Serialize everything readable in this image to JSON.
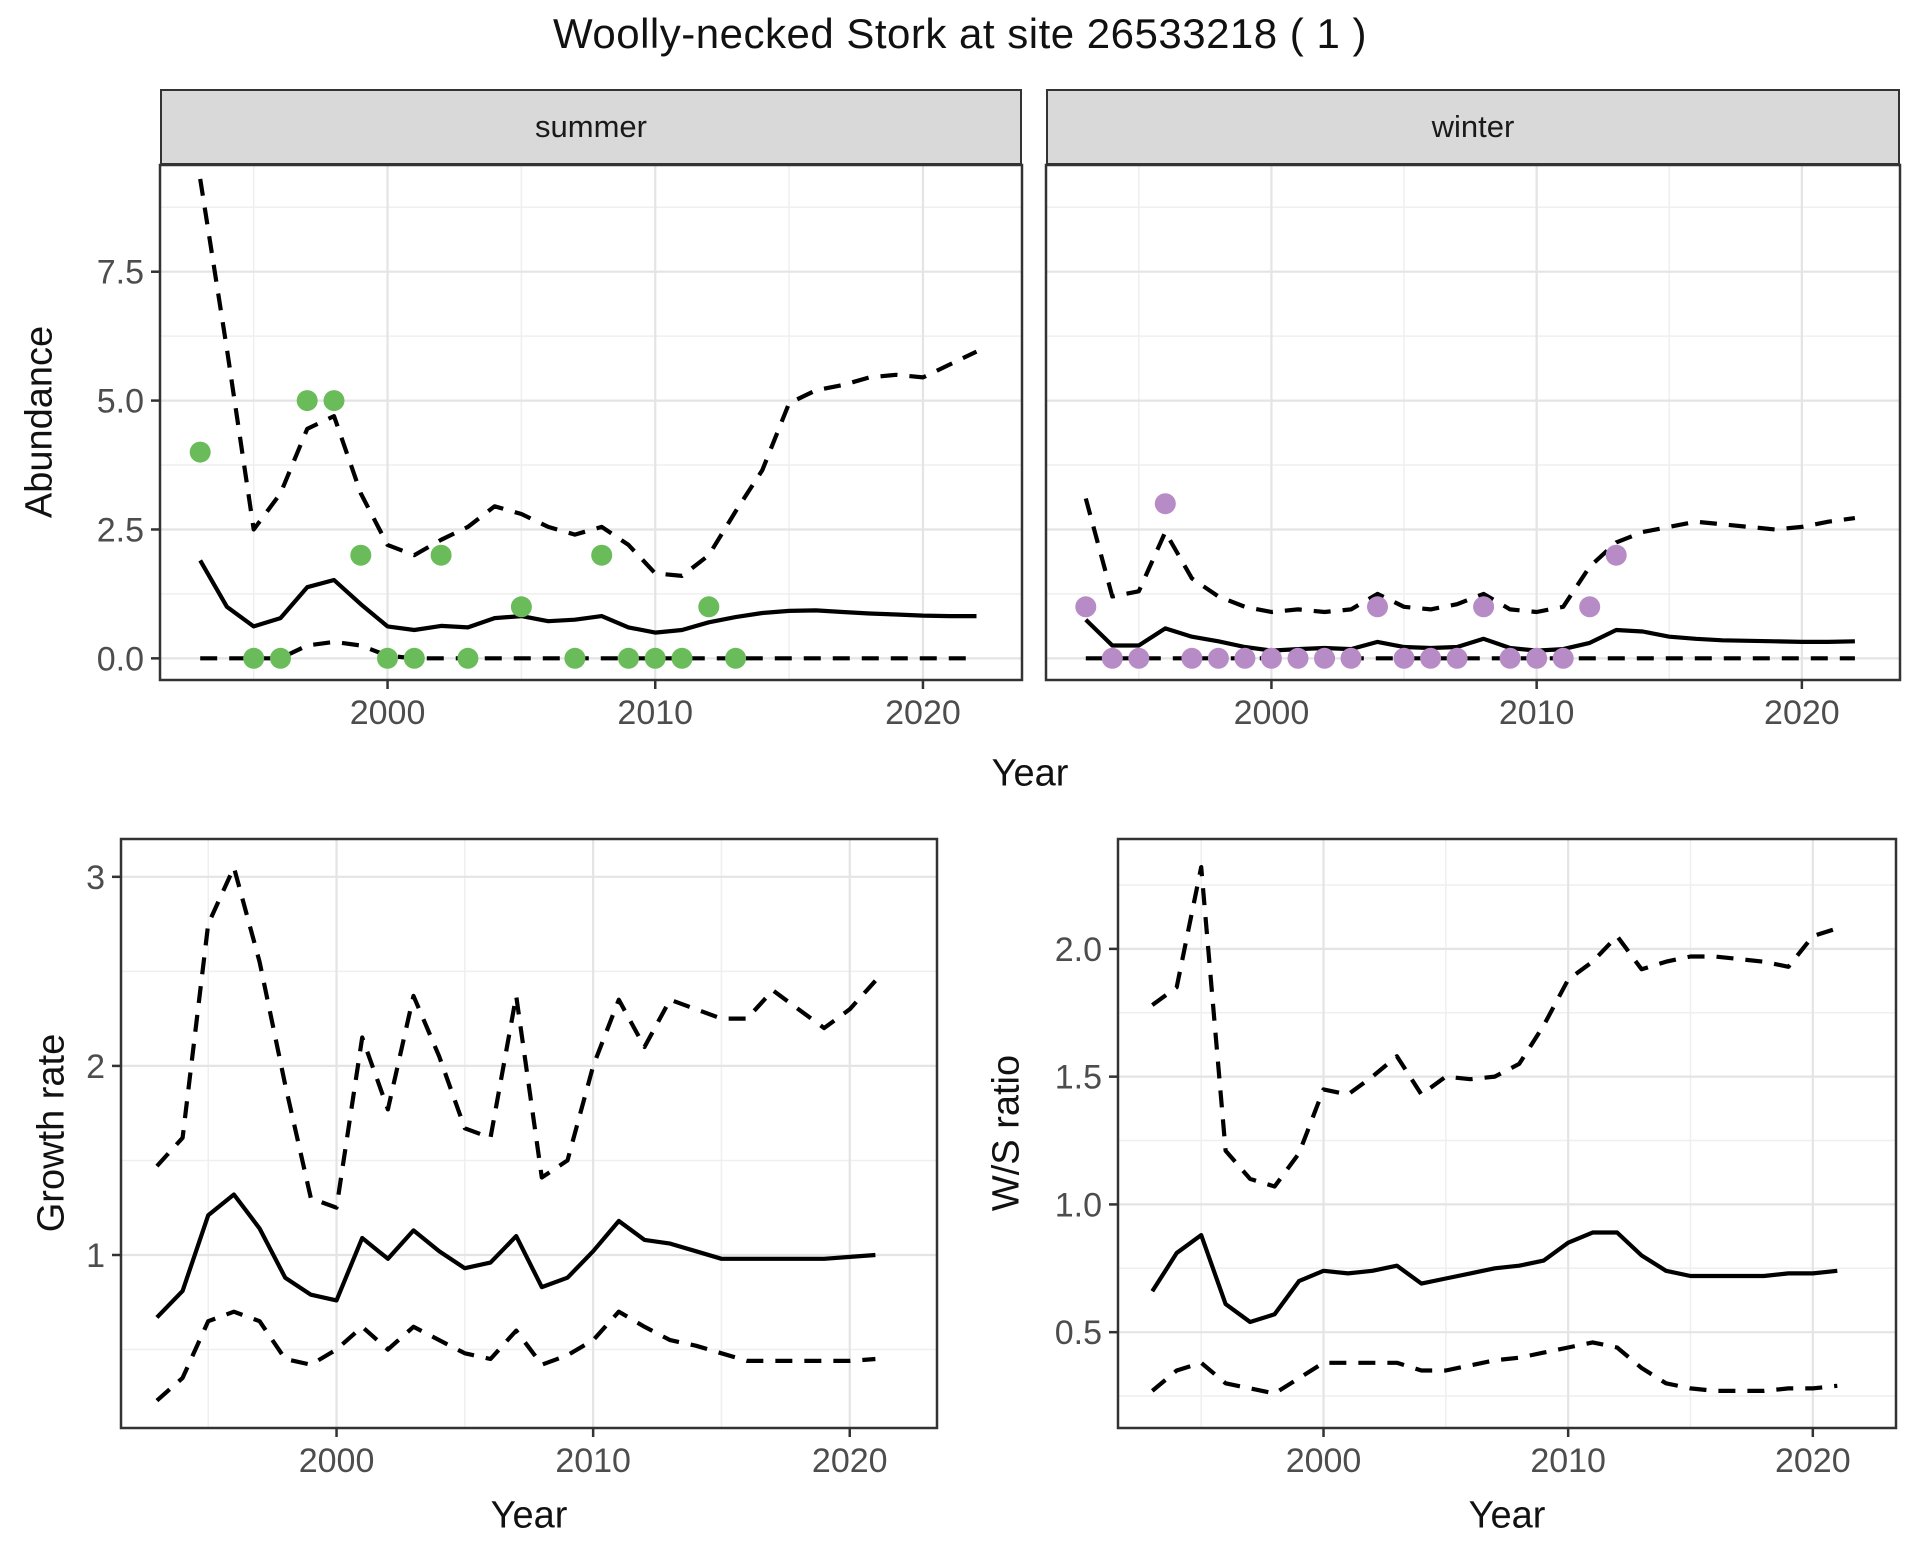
{
  "title": "Woolly-necked Stork at site 26533218 ( 1 )",
  "colors": {
    "summer_point": "#6abc5a",
    "winter_point": "#b78cc6",
    "line": "#000000",
    "strip_background": "#d9d9d9",
    "axis_text": "#4d4d4d",
    "grid_major": "#e4e4e4",
    "grid_minor": "#efefef",
    "panel_border": "#333333"
  },
  "chart_data": [
    {
      "type": "line",
      "facet_label": "summer",
      "xlabel": "Year",
      "ylabel": "Abundance",
      "xlim": [
        1991.5,
        2023.7
      ],
      "ylim": [
        -0.42,
        9.57
      ],
      "x_ticks": [
        2000,
        2010,
        2020
      ],
      "x_minor": [
        1995,
        2005,
        2015
      ],
      "y_ticks": [
        {
          "v": 0,
          "label": "0.0"
        },
        {
          "v": 2.5,
          "label": "2.5"
        },
        {
          "v": 5,
          "label": "5.0"
        },
        {
          "v": 7.5,
          "label": "7.5"
        }
      ],
      "y_minor": [
        1.25,
        3.75,
        6.25,
        8.75
      ],
      "years": [
        1993,
        1994,
        1995,
        1996,
        1997,
        1998,
        1999,
        2000,
        2001,
        2002,
        2003,
        2004,
        2005,
        2006,
        2007,
        2008,
        2009,
        2010,
        2011,
        2012,
        2013,
        2014,
        2015,
        2016,
        2017,
        2018,
        2019,
        2020,
        2021,
        2022
      ],
      "series": [
        {
          "name": "median_fit",
          "style": "solid",
          "values": [
            1.9,
            1.0,
            0.62,
            0.78,
            1.38,
            1.52,
            1.05,
            0.62,
            0.55,
            0.63,
            0.6,
            0.78,
            0.82,
            0.72,
            0.75,
            0.82,
            0.6,
            0.5,
            0.55,
            0.7,
            0.8,
            0.88,
            0.92,
            0.93,
            0.9,
            0.87,
            0.85,
            0.83,
            0.82,
            0.82
          ]
        },
        {
          "name": "upper_ci",
          "style": "dashed",
          "values": [
            9.3,
            6.0,
            2.5,
            3.2,
            4.45,
            4.7,
            3.2,
            2.2,
            2.0,
            2.3,
            2.55,
            2.95,
            2.8,
            2.55,
            2.4,
            2.55,
            2.2,
            1.65,
            1.6,
            2.0,
            2.85,
            3.65,
            4.95,
            5.2,
            5.3,
            5.45,
            5.5,
            5.45,
            5.7,
            5.95
          ]
        },
        {
          "name": "lower_ci",
          "style": "dashed",
          "values": [
            0,
            0,
            0,
            0,
            0.25,
            0.32,
            0.25,
            0.05,
            0,
            0,
            0,
            0,
            0,
            0,
            0,
            0,
            0,
            0,
            0,
            0,
            0,
            0,
            0,
            0,
            0,
            0,
            0,
            0,
            0,
            0
          ]
        }
      ],
      "observed": {
        "color": "#6abc5a",
        "years": [
          1993,
          1995,
          1996,
          1997,
          1998,
          1999,
          2000,
          2001,
          2002,
          2003,
          2005,
          2007,
          2008,
          2009,
          2010,
          2011,
          2012,
          2013
        ],
        "values": [
          4,
          0,
          0,
          5,
          5,
          2,
          0,
          0,
          2,
          0,
          1,
          0,
          2,
          0,
          0,
          0,
          1,
          0
        ]
      }
    },
    {
      "type": "line",
      "facet_label": "winter",
      "xlabel": "Year",
      "ylabel": "Abundance",
      "xlim": [
        1991.5,
        2023.7
      ],
      "ylim": [
        -0.42,
        9.57
      ],
      "x_ticks": [
        2000,
        2010,
        2020
      ],
      "x_minor": [
        1995,
        2005,
        2015
      ],
      "y_ticks": [
        {
          "v": 0,
          "label": "0.0"
        },
        {
          "v": 2.5,
          "label": "2.5"
        },
        {
          "v": 5,
          "label": "5.0"
        },
        {
          "v": 7.5,
          "label": "7.5"
        }
      ],
      "y_minor": [
        1.25,
        3.75,
        6.25,
        8.75
      ],
      "years": [
        1993,
        1994,
        1995,
        1996,
        1997,
        1998,
        1999,
        2000,
        2001,
        2002,
        2003,
        2004,
        2005,
        2006,
        2007,
        2008,
        2009,
        2010,
        2011,
        2012,
        2013,
        2014,
        2015,
        2016,
        2017,
        2018,
        2019,
        2020,
        2021,
        2022
      ],
      "series": [
        {
          "name": "median_fit",
          "style": "solid",
          "values": [
            0.75,
            0.25,
            0.25,
            0.58,
            0.42,
            0.33,
            0.22,
            0.15,
            0.18,
            0.2,
            0.18,
            0.32,
            0.22,
            0.2,
            0.22,
            0.38,
            0.2,
            0.15,
            0.18,
            0.3,
            0.55,
            0.52,
            0.42,
            0.38,
            0.35,
            0.34,
            0.33,
            0.32,
            0.32,
            0.33
          ]
        },
        {
          "name": "upper_ci",
          "style": "dashed",
          "values": [
            3.1,
            1.2,
            1.3,
            2.45,
            1.55,
            1.2,
            1.0,
            0.9,
            0.95,
            0.9,
            0.95,
            1.25,
            1.0,
            0.95,
            1.05,
            1.25,
            0.95,
            0.9,
            1.0,
            1.78,
            2.25,
            2.45,
            2.55,
            2.65,
            2.6,
            2.55,
            2.5,
            2.55,
            2.65,
            2.72
          ]
        },
        {
          "name": "lower_ci",
          "style": "dashed",
          "values": [
            0,
            0,
            0,
            0,
            0,
            0,
            0,
            0,
            0,
            0,
            0,
            0,
            0,
            0,
            0,
            0,
            0,
            0,
            0,
            0,
            0,
            0,
            0,
            0,
            0,
            0,
            0,
            0,
            0,
            0
          ]
        }
      ],
      "observed": {
        "color": "#b78cc6",
        "years": [
          1993,
          1994,
          1995,
          1996,
          1997,
          1998,
          1999,
          2000,
          2001,
          2002,
          2003,
          2004,
          2005,
          2006,
          2007,
          2008,
          2009,
          2010,
          2011,
          2012,
          2013
        ],
        "values": [
          1,
          0,
          0,
          3,
          0,
          0,
          0,
          0,
          0,
          0,
          0,
          1,
          0,
          0,
          0,
          1,
          0,
          0,
          0,
          1,
          2
        ]
      }
    },
    {
      "type": "line",
      "facet_label": "",
      "xlabel": "Year",
      "ylabel": "Growth rate",
      "xlim": [
        1991.6,
        2023.4
      ],
      "ylim": [
        0.085,
        3.2
      ],
      "x_ticks": [
        2000,
        2010,
        2020
      ],
      "x_minor": [
        1995,
        2005,
        2015
      ],
      "y_ticks": [
        {
          "v": 1,
          "label": "1"
        },
        {
          "v": 2,
          "label": "2"
        },
        {
          "v": 3,
          "label": "3"
        }
      ],
      "y_minor": [
        0.5,
        1.5,
        2.5
      ],
      "years": [
        1993,
        1994,
        1995,
        1996,
        1997,
        1998,
        1999,
        2000,
        2001,
        2002,
        2003,
        2004,
        2005,
        2006,
        2007,
        2008,
        2009,
        2010,
        2011,
        2012,
        2013,
        2014,
        2015,
        2016,
        2017,
        2018,
        2019,
        2020,
        2021
      ],
      "series": [
        {
          "name": "median_fit",
          "style": "solid",
          "values": [
            0.67,
            0.81,
            1.21,
            1.32,
            1.14,
            0.88,
            0.79,
            0.76,
            1.09,
            0.98,
            1.13,
            1.02,
            0.93,
            0.96,
            1.1,
            0.83,
            0.88,
            1.02,
            1.18,
            1.08,
            1.06,
            1.02,
            0.98,
            0.98,
            0.98,
            0.98,
            0.98,
            0.99,
            1.0
          ]
        },
        {
          "name": "upper_ci",
          "style": "dashed",
          "values": [
            1.47,
            1.62,
            2.75,
            3.05,
            2.55,
            1.9,
            1.3,
            1.25,
            2.15,
            1.77,
            2.37,
            2.05,
            1.67,
            1.62,
            2.37,
            1.41,
            1.5,
            2.0,
            2.35,
            2.1,
            2.35,
            2.3,
            2.25,
            2.25,
            2.4,
            2.3,
            2.2,
            2.3,
            2.45
          ]
        },
        {
          "name": "lower_ci",
          "style": "dashed",
          "values": [
            0.23,
            0.35,
            0.65,
            0.7,
            0.65,
            0.45,
            0.42,
            0.5,
            0.62,
            0.5,
            0.62,
            0.55,
            0.48,
            0.45,
            0.6,
            0.42,
            0.47,
            0.55,
            0.7,
            0.62,
            0.55,
            0.52,
            0.48,
            0.44,
            0.44,
            0.44,
            0.44,
            0.44,
            0.45
          ]
        }
      ],
      "observed": null
    },
    {
      "type": "line",
      "facet_label": "",
      "xlabel": "Year",
      "ylabel": "W/S ratio",
      "xlim": [
        1991.6,
        2023.4
      ],
      "ylim": [
        0.125,
        2.43
      ],
      "x_ticks": [
        2000,
        2010,
        2020
      ],
      "x_minor": [
        1995,
        2005,
        2015
      ],
      "y_ticks": [
        {
          "v": 0.5,
          "label": "0.5"
        },
        {
          "v": 1.0,
          "label": "1.0"
        },
        {
          "v": 1.5,
          "label": "1.5"
        },
        {
          "v": 2.0,
          "label": "2.0"
        }
      ],
      "y_minor": [
        0.25,
        0.75,
        1.25,
        1.75,
        2.25
      ],
      "years": [
        1993,
        1994,
        1995,
        1996,
        1997,
        1998,
        1999,
        2000,
        2001,
        2002,
        2003,
        2004,
        2005,
        2006,
        2007,
        2008,
        2009,
        2010,
        2011,
        2012,
        2013,
        2014,
        2015,
        2016,
        2017,
        2018,
        2019,
        2020,
        2021
      ],
      "series": [
        {
          "name": "median_fit",
          "style": "solid",
          "values": [
            0.66,
            0.81,
            0.88,
            0.61,
            0.54,
            0.57,
            0.7,
            0.74,
            0.73,
            0.74,
            0.76,
            0.69,
            0.71,
            0.73,
            0.75,
            0.76,
            0.78,
            0.85,
            0.89,
            0.89,
            0.8,
            0.74,
            0.72,
            0.72,
            0.72,
            0.72,
            0.73,
            0.73,
            0.74
          ]
        },
        {
          "name": "upper_ci",
          "style": "dashed",
          "values": [
            1.78,
            1.85,
            2.32,
            1.21,
            1.1,
            1.07,
            1.2,
            1.45,
            1.43,
            1.5,
            1.58,
            1.43,
            1.5,
            1.49,
            1.5,
            1.55,
            1.7,
            1.88,
            1.95,
            2.05,
            1.92,
            1.95,
            1.97,
            1.97,
            1.96,
            1.95,
            1.93,
            2.05,
            2.08
          ]
        },
        {
          "name": "lower_ci",
          "style": "dashed",
          "values": [
            0.27,
            0.35,
            0.38,
            0.3,
            0.28,
            0.26,
            0.32,
            0.38,
            0.38,
            0.38,
            0.38,
            0.35,
            0.35,
            0.37,
            0.39,
            0.4,
            0.42,
            0.44,
            0.46,
            0.44,
            0.36,
            0.3,
            0.28,
            0.27,
            0.27,
            0.27,
            0.28,
            0.28,
            0.29
          ]
        }
      ],
      "observed": null
    }
  ]
}
